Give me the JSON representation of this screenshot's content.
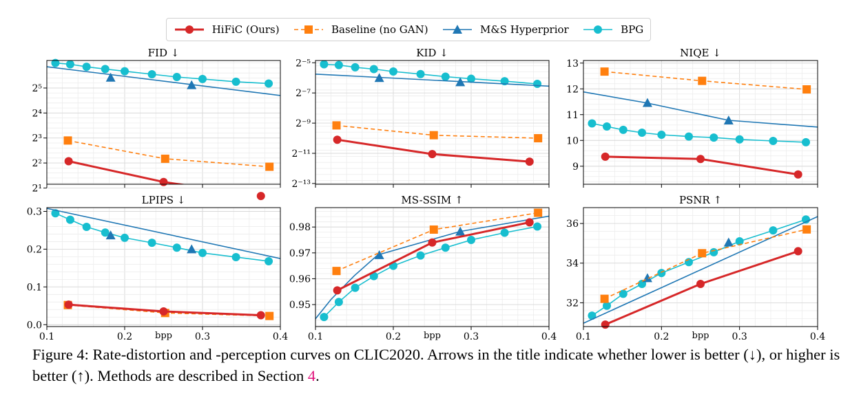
{
  "legend": {
    "entries": [
      {
        "name": "HiFiC (Ours)",
        "color": "#d62728",
        "marker": "circle",
        "dash": "solid"
      },
      {
        "name": "Baseline (no GAN)",
        "color": "#ff7f0e",
        "marker": "square",
        "dash": "dashed"
      },
      {
        "name": "M&S Hyperprior",
        "color": "#1f77b4",
        "marker": "triangle",
        "dash": "solid"
      },
      {
        "name": "BPG",
        "color": "#17becf",
        "marker": "circle",
        "dash": "solid"
      }
    ]
  },
  "caption": {
    "text_a": "Figure 4: Rate-distortion and -perception curves on CLIC2020. Arrows in the title indicate whether lower is better (↓), or higher is better (↑). Methods are described in Section ",
    "ref": "4",
    "text_b": "."
  },
  "chart_data": [
    {
      "type": "line",
      "title": "FID ↓",
      "xlabel": "",
      "ylabel": "",
      "xlim": [
        0.1,
        0.4
      ],
      "yscale": "log2",
      "ylim": [
        1.15,
        6.1
      ],
      "ytick_values": [
        1,
        2,
        3,
        4,
        5
      ],
      "ytick_labels": [
        "2¹",
        "2²",
        "2³",
        "2⁴",
        "2⁵"
      ],
      "xtick_values": [
        0.1,
        0.2,
        0.3,
        0.4
      ],
      "xtick_labels": [
        "",
        "",
        "",
        ""
      ],
      "grid": true,
      "series": [
        {
          "name": "HiFiC (Ours)",
          "x": [
            0.128,
            0.25,
            0.375
          ],
          "y": [
            2.07,
            1.24,
            0.68
          ]
        },
        {
          "name": "Baseline (no GAN)",
          "x": [
            0.127,
            0.252,
            0.386
          ],
          "y": [
            2.9,
            2.17,
            1.85
          ]
        },
        {
          "name": "M&S Hyperprior",
          "line_x": [
            0.1,
            0.4
          ],
          "line_y": [
            5.85,
            4.7
          ],
          "x": [
            0.182,
            0.286
          ],
          "y": [
            5.42,
            5.12
          ]
        },
        {
          "name": "BPG",
          "x": [
            0.111,
            0.13,
            0.151,
            0.175,
            0.2,
            0.235,
            0.267,
            0.3,
            0.343,
            0.385
          ],
          "y": [
            6.0,
            5.95,
            5.85,
            5.76,
            5.67,
            5.55,
            5.44,
            5.36,
            5.25,
            5.18
          ]
        }
      ]
    },
    {
      "type": "line",
      "title": "KID ↓",
      "xlabel": "",
      "ylabel": "",
      "xlim": [
        0.1,
        0.4
      ],
      "yscale": "log2",
      "ylim": [
        -13.05,
        -4.85
      ],
      "ytick_values": [
        -5,
        -7,
        -9,
        -11,
        -13
      ],
      "ytick_labels": [
        "2⁻⁵",
        "2⁻⁷",
        "2⁻⁹",
        "2⁻¹¹",
        "2⁻¹³"
      ],
      "xtick_values": [
        0.1,
        0.2,
        0.3,
        0.4
      ],
      "xtick_labels": [
        "",
        "",
        "",
        ""
      ],
      "grid": true,
      "series": [
        {
          "name": "HiFiC (Ours)",
          "x": [
            0.128,
            0.25,
            0.375
          ],
          "y": [
            -10.1,
            -11.05,
            -11.55
          ]
        },
        {
          "name": "Baseline (no GAN)",
          "x": [
            0.127,
            0.252,
            0.386
          ],
          "y": [
            -9.15,
            -9.8,
            -10.0
          ]
        },
        {
          "name": "M&S Hyperprior",
          "line_x": [
            0.1,
            0.4
          ],
          "line_y": [
            -5.75,
            -6.55
          ],
          "x": [
            0.182,
            0.286
          ],
          "y": [
            -6.0,
            -6.28
          ]
        },
        {
          "name": "BPG",
          "x": [
            0.111,
            0.13,
            0.151,
            0.175,
            0.2,
            0.235,
            0.267,
            0.3,
            0.343,
            0.385
          ],
          "y": [
            -5.1,
            -5.15,
            -5.3,
            -5.42,
            -5.58,
            -5.75,
            -5.92,
            -6.06,
            -6.22,
            -6.4
          ]
        }
      ]
    },
    {
      "type": "line",
      "title": "NIQE ↓",
      "xlabel": "",
      "ylabel": "",
      "xlim": [
        0.1,
        0.4
      ],
      "yscale": "linear",
      "ylim": [
        8.3,
        13.1
      ],
      "ytick_values": [
        9,
        10,
        11,
        12,
        13
      ],
      "ytick_labels": [
        "9",
        "10",
        "11",
        "12",
        "13"
      ],
      "xtick_values": [
        0.1,
        0.2,
        0.3,
        0.4
      ],
      "xtick_labels": [
        "",
        "",
        "",
        ""
      ],
      "grid": true,
      "series": [
        {
          "name": "HiFiC (Ours)",
          "x": [
            0.128,
            0.25,
            0.375
          ],
          "y": [
            9.37,
            9.28,
            8.68
          ]
        },
        {
          "name": "Baseline (no GAN)",
          "x": [
            0.127,
            0.252,
            0.386
          ],
          "y": [
            12.67,
            12.31,
            11.98
          ]
        },
        {
          "name": "M&S Hyperprior",
          "line_x": [
            0.1,
            0.18,
            0.286,
            0.4
          ],
          "line_y": [
            11.88,
            11.46,
            10.78,
            10.52
          ],
          "x": [
            0.182,
            0.286
          ],
          "y": [
            11.46,
            10.78
          ]
        },
        {
          "name": "BPG",
          "x": [
            0.111,
            0.13,
            0.151,
            0.175,
            0.2,
            0.235,
            0.267,
            0.3,
            0.343,
            0.385
          ],
          "y": [
            10.66,
            10.54,
            10.41,
            10.3,
            10.22,
            10.15,
            10.11,
            10.04,
            9.98,
            9.93
          ]
        }
      ]
    },
    {
      "type": "line",
      "title": "LPIPS ↓",
      "xlabel": "bpp",
      "ylabel": "",
      "xlim": [
        0.1,
        0.4
      ],
      "yscale": "linear",
      "ylim": [
        -0.005,
        0.31
      ],
      "ytick_values": [
        0.0,
        0.1,
        0.2,
        0.3
      ],
      "ytick_labels": [
        "0.0",
        "0.1",
        "0.2",
        "0.3"
      ],
      "xtick_values": [
        0.1,
        0.2,
        0.3,
        0.4
      ],
      "xtick_labels": [
        "0.1",
        "0.2",
        "0.3",
        "0.4"
      ],
      "grid": true,
      "series": [
        {
          "name": "HiFiC (Ours)",
          "x": [
            0.128,
            0.25,
            0.375
          ],
          "y": [
            0.053,
            0.035,
            0.025
          ]
        },
        {
          "name": "Baseline (no GAN)",
          "x": [
            0.127,
            0.252,
            0.386
          ],
          "y": [
            0.052,
            0.031,
            0.023
          ]
        },
        {
          "name": "M&S Hyperprior",
          "line_x": [
            0.1,
            0.4
          ],
          "line_y": [
            0.308,
            0.175
          ],
          "x": [
            0.182,
            0.286
          ],
          "y": [
            0.237,
            0.2
          ]
        },
        {
          "name": "BPG",
          "x": [
            0.111,
            0.13,
            0.151,
            0.175,
            0.2,
            0.235,
            0.267,
            0.3,
            0.343,
            0.385
          ],
          "y": [
            0.295,
            0.278,
            0.259,
            0.244,
            0.23,
            0.217,
            0.204,
            0.19,
            0.179,
            0.168
          ]
        }
      ]
    },
    {
      "type": "line",
      "title": "MS-SSIM ↑",
      "xlabel": "bpp",
      "ylabel": "",
      "xlim": [
        0.1,
        0.4
      ],
      "yscale": "linear",
      "ylim": [
        0.9415,
        0.9875
      ],
      "ytick_values": [
        0.95,
        0.96,
        0.97,
        0.98
      ],
      "ytick_labels": [
        "0.95",
        "0.96",
        "0.97",
        "0.98"
      ],
      "xtick_values": [
        0.1,
        0.2,
        0.3,
        0.4
      ],
      "xtick_labels": [
        "0.1",
        "0.2",
        "0.3",
        "0.4"
      ],
      "grid": true,
      "series": [
        {
          "name": "HiFiC (Ours)",
          "x": [
            0.128,
            0.25,
            0.375
          ],
          "y": [
            0.9555,
            0.974,
            0.9818
          ]
        },
        {
          "name": "Baseline (no GAN)",
          "x": [
            0.127,
            0.252,
            0.386
          ],
          "y": [
            0.963,
            0.979,
            0.9855
          ]
        },
        {
          "name": "M&S Hyperprior",
          "line_x": [
            0.1,
            0.12,
            0.15,
            0.18,
            0.286,
            0.4
          ],
          "line_y": [
            0.9445,
            0.952,
            0.9612,
            0.9692,
            0.9783,
            0.9842
          ],
          "x": [
            0.182,
            0.286
          ],
          "y": [
            0.9692,
            0.9783
          ]
        },
        {
          "name": "BPG",
          "x": [
            0.111,
            0.13,
            0.151,
            0.175,
            0.2,
            0.235,
            0.267,
            0.3,
            0.343,
            0.385
          ],
          "y": [
            0.9452,
            0.951,
            0.9565,
            0.961,
            0.965,
            0.969,
            0.972,
            0.975,
            0.9778,
            0.9802
          ]
        }
      ]
    },
    {
      "type": "line",
      "title": "PSNR ↑",
      "xlabel": "bpp",
      "ylabel": "",
      "xlim": [
        0.1,
        0.4
      ],
      "yscale": "linear",
      "ylim": [
        30.8,
        36.8
      ],
      "ytick_values": [
        32,
        34,
        36
      ],
      "ytick_labels": [
        "32",
        "34",
        "36"
      ],
      "xtick_values": [
        0.1,
        0.2,
        0.3,
        0.4
      ],
      "xtick_labels": [
        "0.1",
        "0.2",
        "0.3",
        "0.4"
      ],
      "grid": true,
      "series": [
        {
          "name": "HiFiC (Ours)",
          "x": [
            0.128,
            0.25,
            0.375
          ],
          "y": [
            30.9,
            32.95,
            34.6
          ]
        },
        {
          "name": "Baseline (no GAN)",
          "x": [
            0.127,
            0.252,
            0.386
          ],
          "y": [
            32.2,
            34.5,
            35.7
          ]
        },
        {
          "name": "M&S Hyperprior",
          "line_x": [
            0.1,
            0.4
          ],
          "line_y": [
            30.97,
            36.35
          ],
          "x": [
            0.182,
            0.286
          ],
          "y": [
            33.25,
            35.05
          ]
        },
        {
          "name": "BPG",
          "x": [
            0.111,
            0.13,
            0.151,
            0.175,
            0.2,
            0.235,
            0.267,
            0.3,
            0.343,
            0.385
          ],
          "y": [
            31.35,
            31.85,
            32.45,
            32.95,
            33.5,
            34.05,
            34.55,
            35.1,
            35.65,
            36.2
          ]
        }
      ]
    }
  ]
}
